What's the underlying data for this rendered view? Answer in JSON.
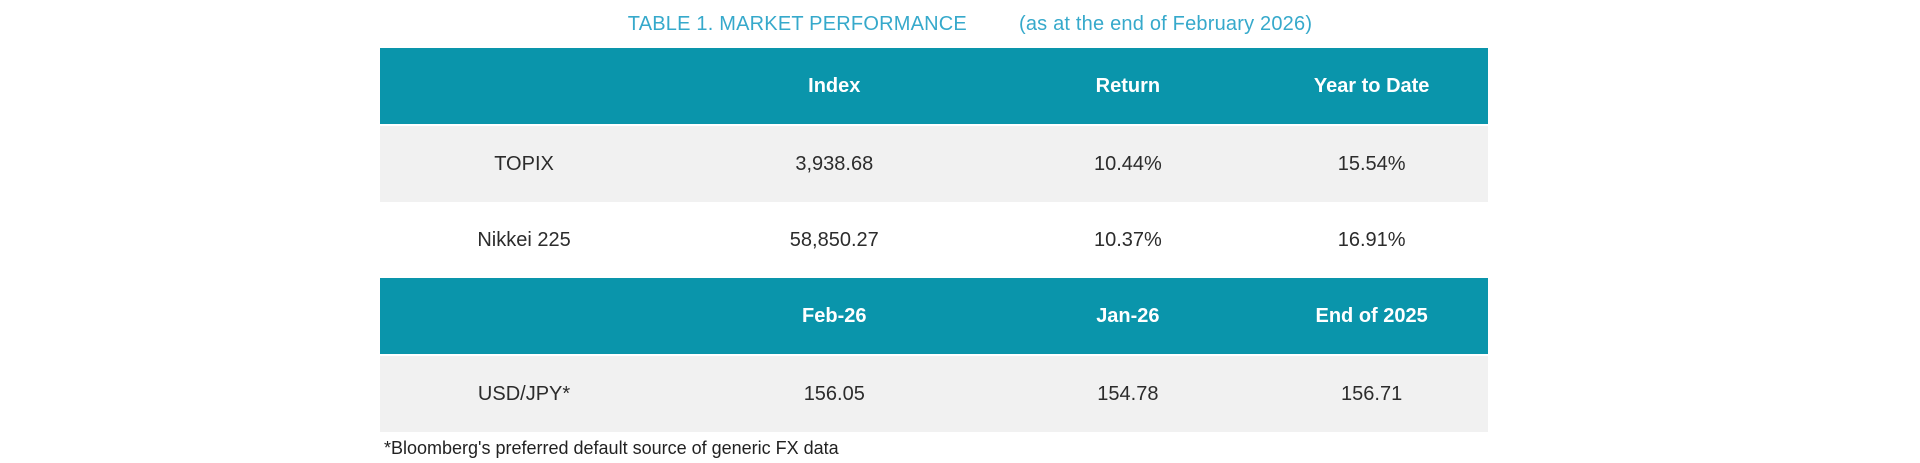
{
  "title": {
    "main": "TABLE 1. MARKET PERFORMANCE",
    "sub": "(as at the end of February 2026)"
  },
  "colors": {
    "title_text": "#36A9CB",
    "header_bg": "#0A95AB",
    "header_text": "#FFFFFF",
    "row_shaded_bg": "#F1F1F1",
    "row_plain_bg": "#FFFFFF",
    "body_text": "#2C2C2C"
  },
  "table": {
    "sections": [
      {
        "header": {
          "col0": "",
          "col1": "Index",
          "col2": "Return",
          "col3": "Year to Date"
        },
        "rows": [
          {
            "label": "TOPIX",
            "col1": "3,938.68",
            "col2": "10.44%",
            "col3": "15.54%"
          },
          {
            "label": "Nikkei 225",
            "col1": "58,850.27",
            "col2": "10.37%",
            "col3": "16.91%"
          }
        ]
      },
      {
        "header": {
          "col0": "",
          "col1": "Feb-26",
          "col2": "Jan-26",
          "col3": "End of 2025"
        },
        "rows": [
          {
            "label": "USD/JPY*",
            "col1": "156.05",
            "col2": "154.78",
            "col3": "156.71"
          }
        ]
      }
    ]
  },
  "footnote": "*Bloomberg's preferred default source of generic FX data"
}
